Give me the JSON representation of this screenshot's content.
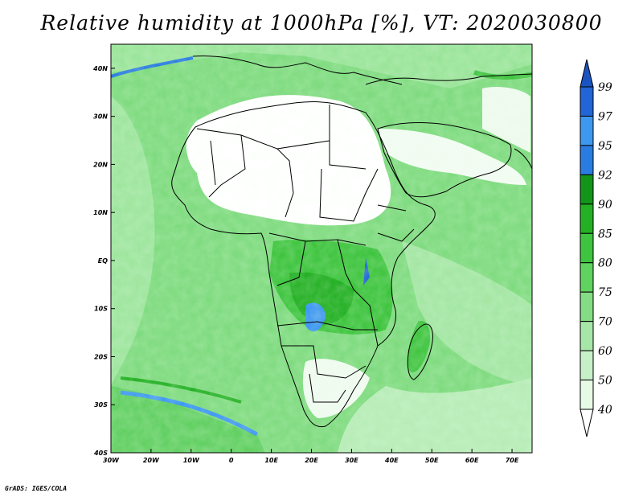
{
  "title": "Relative humidity at 1000hPa [%], VT: 2020030800",
  "credit": "GrADS: IGES/COLA",
  "map": {
    "lon_range": [
      -30,
      75
    ],
    "lat_range": [
      -40,
      45
    ],
    "lon_ticks": [
      "30W",
      "20W",
      "10W",
      "0",
      "10E",
      "20E",
      "30E",
      "40E",
      "50E",
      "60E",
      "70E"
    ],
    "lat_ticks": [
      "40N",
      "30N",
      "20N",
      "10N",
      "EQ",
      "10S",
      "20S",
      "30S",
      "40S"
    ]
  },
  "colorbar": {
    "levels": [
      "40",
      "50",
      "60",
      "70",
      "75",
      "80",
      "85",
      "90",
      "92",
      "95",
      "97",
      "99"
    ],
    "colors": [
      "#ffffff",
      "#e6fae6",
      "#c8f0c8",
      "#a6e6a6",
      "#84dc84",
      "#5fd25f",
      "#3ec43e",
      "#24b024",
      "#13951a",
      "#2a7de0",
      "#3f98f0",
      "#2165d6",
      "#1b54c0"
    ]
  }
}
